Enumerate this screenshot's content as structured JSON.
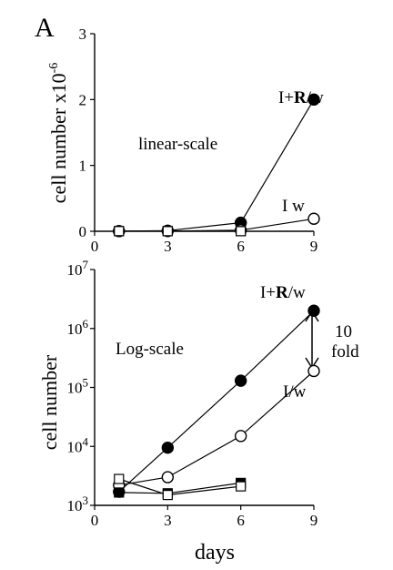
{
  "panel_label": "A",
  "chart_data": [
    {
      "type": "scatter",
      "name": "top",
      "scale": "linear",
      "ylabel": "cell number x10",
      "ylabel_exponent": "-6",
      "annotation": "linear-scale",
      "xlim": [
        0,
        9
      ],
      "ylim": [
        0,
        3
      ],
      "xticks": [
        0,
        3,
        6,
        9
      ],
      "yticks": [
        0,
        1,
        2,
        3
      ],
      "series": [
        {
          "label": "I+",
          "label_bold": "R",
          "label_suffix": "/w",
          "marker": "filled-circle",
          "x": [
            1,
            3,
            6,
            9
          ],
          "y": [
            0.002,
            0.01,
            0.13,
            2.0
          ]
        },
        {
          "label": "I w",
          "marker": "open-circle",
          "x": [
            1,
            3,
            6,
            9
          ],
          "y": [
            0.002,
            0.003,
            0.016,
            0.19
          ]
        },
        {
          "marker": "filled-square",
          "x": [
            1,
            3,
            6
          ],
          "y": [
            0.002,
            0.002,
            0.002
          ]
        },
        {
          "marker": "open-square",
          "x": [
            1,
            3,
            6
          ],
          "y": [
            0.003,
            0.002,
            0.002
          ]
        }
      ]
    },
    {
      "type": "scatter",
      "name": "bottom",
      "scale": "log",
      "ylabel": "cell number",
      "xlabel": "days",
      "annotation": "Log-scale",
      "fold_label_1": "10",
      "fold_label_2": "fold",
      "xlim": [
        0,
        9
      ],
      "ylim": [
        1000,
        10000000
      ],
      "xticks": [
        0,
        3,
        6,
        9
      ],
      "ytick_base": "10",
      "ytick_exponents": [
        "3",
        "4",
        "5",
        "6",
        "7"
      ],
      "series": [
        {
          "label": "I+",
          "label_bold": "R",
          "label_suffix": "/w",
          "marker": "filled-circle",
          "x": [
            1,
            3,
            6,
            9
          ],
          "y": [
            1700,
            9500,
            130000,
            2000000
          ]
        },
        {
          "label": "I/w",
          "marker": "open-circle",
          "x": [
            1,
            3,
            6,
            9
          ],
          "y": [
            2200,
            3000,
            15000,
            190000
          ]
        },
        {
          "marker": "filled-square",
          "x": [
            1,
            3,
            6
          ],
          "y": [
            1650,
            1600,
            2400
          ]
        },
        {
          "marker": "open-square",
          "x": [
            1,
            3,
            6
          ],
          "y": [
            2800,
            1500,
            2100
          ]
        }
      ]
    }
  ]
}
